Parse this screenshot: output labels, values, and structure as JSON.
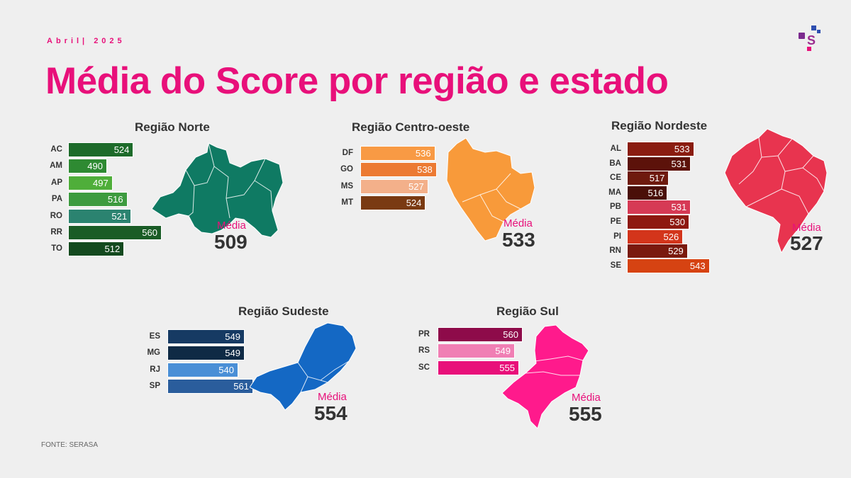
{
  "header": {
    "eyebrow": "Abril| 2025",
    "title": "Média do Score por região e estado"
  },
  "footer": {
    "source": "FONTE: SERASA"
  },
  "logo": {
    "icon": "serasa-s-logo-icon",
    "letter": "S"
  },
  "avg_label": "Média",
  "chart_data": [
    {
      "type": "bar",
      "title": "Região Norte",
      "orientation": "horizontal",
      "categories": [
        "AC",
        "AM",
        "AP",
        "PA",
        "RO",
        "RR",
        "TO"
      ],
      "values": [
        524,
        490,
        497,
        516,
        521,
        560,
        512
      ],
      "colors": [
        "#1d6b2a",
        "#2e8a32",
        "#4fae3a",
        "#3d9b3f",
        "#2b8370",
        "#1a5c26",
        "#144a1f"
      ],
      "average": 509,
      "map_color": "#0f7a63",
      "map_icon": "north-region-map-icon"
    },
    {
      "type": "bar",
      "title": "Região Centro-oeste",
      "orientation": "horizontal",
      "categories": [
        "DF",
        "GO",
        "MS",
        "MT"
      ],
      "values": [
        536,
        538,
        527,
        524
      ],
      "colors": [
        "#f89a44",
        "#ec7a33",
        "#f3b08a",
        "#7a3a12"
      ],
      "average": 533,
      "map_color": "#f89a3a",
      "map_icon": "center-west-region-map-icon"
    },
    {
      "type": "bar",
      "title": "Região Nordeste",
      "orientation": "horizontal",
      "categories": [
        "AL",
        "BA",
        "CE",
        "MA",
        "PB",
        "PE",
        "PI",
        "RN",
        "SE"
      ],
      "values": [
        533,
        531,
        517,
        516,
        531,
        530,
        526,
        529,
        543
      ],
      "colors": [
        "#8a1c10",
        "#5c120a",
        "#6e1a0e",
        "#4a0f08",
        "#d63a55",
        "#8e1810",
        "#d3351b",
        "#7a1a0e",
        "#d64312"
      ],
      "average": 527,
      "map_color": "#e8344f",
      "map_icon": "northeast-region-map-icon"
    },
    {
      "type": "bar",
      "title": "Região Sudeste",
      "orientation": "horizontal",
      "categories": [
        "ES",
        "MG",
        "RJ",
        "SP"
      ],
      "values": [
        549,
        549,
        540,
        561
      ],
      "colors": [
        "#163a63",
        "#0f2a45",
        "#4a8fd6",
        "#2a5d9c"
      ],
      "average": 554,
      "map_color": "#1468c4",
      "map_icon": "southeast-region-map-icon"
    },
    {
      "type": "bar",
      "title": "Região Sul",
      "orientation": "horizontal",
      "categories": [
        "PR",
        "RS",
        "SC"
      ],
      "values": [
        560,
        549,
        555
      ],
      "colors": [
        "#8e0b4a",
        "#f07fb4",
        "#e8107a"
      ],
      "average": 555,
      "map_color": "#ff1a8c",
      "map_icon": "south-region-map-icon"
    }
  ]
}
